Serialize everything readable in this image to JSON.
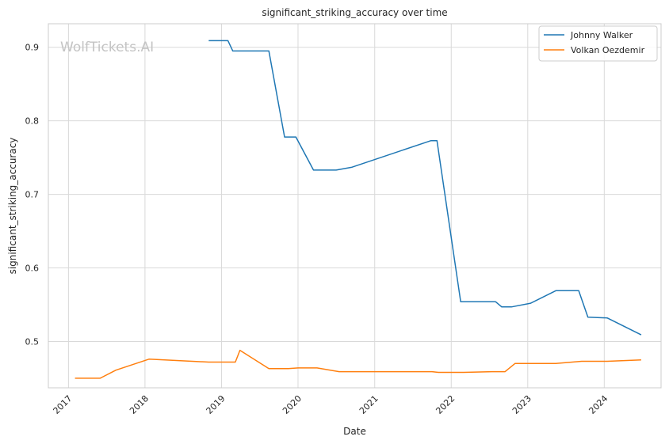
{
  "chart_data": {
    "type": "line",
    "title": "significant_striking_accuracy over time",
    "xlabel": "Date",
    "ylabel": "significant_striking_accuracy",
    "watermark": "WolfTickets.AI",
    "x_ticks": [
      "2017",
      "2018",
      "2019",
      "2020",
      "2021",
      "2022",
      "2023",
      "2024"
    ],
    "y_ticks": [
      "0.5",
      "0.6",
      "0.7",
      "0.8",
      "0.9"
    ],
    "xlim": [
      "2016-09-27",
      "2024-09-28"
    ],
    "ylim": [
      0.437,
      0.932
    ],
    "grid": true,
    "legend_position": "top-right",
    "series": [
      {
        "name": "Johnny Walker",
        "color": "#1f77b4",
        "points": [
          [
            "2018-11-01",
            0.909
          ],
          [
            "2019-02-01",
            0.909
          ],
          [
            "2019-02-24",
            0.895
          ],
          [
            "2019-08-15",
            0.895
          ],
          [
            "2019-10-29",
            0.778
          ],
          [
            "2019-12-22",
            0.778
          ],
          [
            "2020-03-15",
            0.733
          ],
          [
            "2020-07-01",
            0.733
          ],
          [
            "2020-09-15",
            0.737
          ],
          [
            "2021-09-25",
            0.773
          ],
          [
            "2021-10-25",
            0.773
          ],
          [
            "2022-02-15",
            0.554
          ],
          [
            "2022-08-01",
            0.554
          ],
          [
            "2022-08-30",
            0.547
          ],
          [
            "2022-10-15",
            0.547
          ],
          [
            "2023-01-15",
            0.552
          ],
          [
            "2023-05-15",
            0.569
          ],
          [
            "2023-09-01",
            0.569
          ],
          [
            "2023-10-15",
            0.533
          ],
          [
            "2024-01-15",
            0.532
          ],
          [
            "2024-06-25",
            0.509
          ]
        ]
      },
      {
        "name": "Volkan Oezdemir",
        "color": "#ff7f0e",
        "points": [
          [
            "2017-02-01",
            0.45
          ],
          [
            "2017-06-01",
            0.45
          ],
          [
            "2017-08-15",
            0.461
          ],
          [
            "2018-01-20",
            0.476
          ],
          [
            "2018-11-01",
            0.472
          ],
          [
            "2019-03-08",
            0.472
          ],
          [
            "2019-03-30",
            0.488
          ],
          [
            "2019-08-15",
            0.463
          ],
          [
            "2019-11-15",
            0.463
          ],
          [
            "2020-01-01",
            0.464
          ],
          [
            "2020-04-01",
            0.464
          ],
          [
            "2020-07-15",
            0.459
          ],
          [
            "2021-10-01",
            0.459
          ],
          [
            "2021-11-01",
            0.458
          ],
          [
            "2022-03-01",
            0.458
          ],
          [
            "2022-07-15",
            0.459
          ],
          [
            "2022-09-15",
            0.459
          ],
          [
            "2022-11-01",
            0.47
          ],
          [
            "2023-05-15",
            0.47
          ],
          [
            "2023-09-15",
            0.473
          ],
          [
            "2024-01-15",
            0.473
          ],
          [
            "2024-06-25",
            0.475
          ]
        ]
      }
    ]
  }
}
